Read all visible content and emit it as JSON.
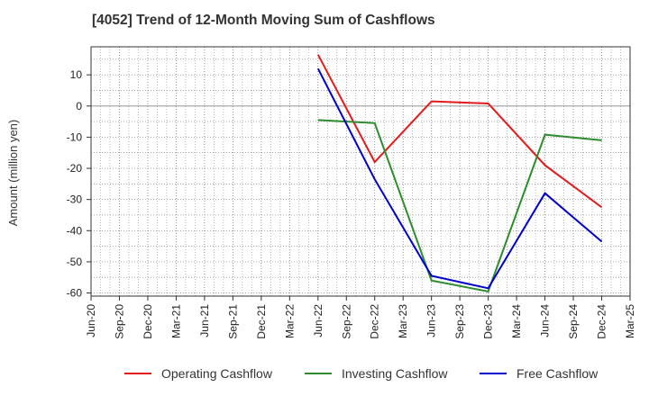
{
  "chart_data": {
    "type": "line",
    "title": "[4052]  Trend of 12-Month Moving Sum of Cashflows",
    "ylabel": "Amount (million yen)",
    "xlabel": "",
    "categories": [
      "Jun-20",
      "Sep-20",
      "Dec-20",
      "Mar-21",
      "Jun-21",
      "Sep-21",
      "Dec-21",
      "Mar-22",
      "Jun-22",
      "Sep-22",
      "Dec-22",
      "Mar-23",
      "Jun-23",
      "Sep-23",
      "Dec-23",
      "Mar-24",
      "Jun-24",
      "Sep-24",
      "Dec-24",
      "Mar-25"
    ],
    "yticks": [
      10,
      0,
      -10,
      -20,
      -30,
      -40,
      -50,
      -60
    ],
    "ylim": [
      -61,
      19
    ],
    "grid": true,
    "legend_position": "bottom",
    "series": [
      {
        "name": "Operating Cashflow",
        "color": "#e31a1c",
        "points": [
          [
            "Jun-22",
            16.5
          ],
          [
            "Dec-22",
            -18
          ],
          [
            "Jun-23",
            1.5
          ],
          [
            "Dec-23",
            0.8
          ],
          [
            "Jun-24",
            -19
          ],
          [
            "Dec-24",
            -32.5
          ]
        ]
      },
      {
        "name": "Investing Cashflow",
        "color": "#2e8b2e",
        "points": [
          [
            "Jun-22",
            -4.5
          ],
          [
            "Dec-22",
            -5.5
          ],
          [
            "Jun-23",
            -56
          ],
          [
            "Dec-23",
            -59.5
          ],
          [
            "Jun-24",
            -9.2
          ],
          [
            "Dec-24",
            -11
          ]
        ]
      },
      {
        "name": "Free Cashflow",
        "color": "#0000cc",
        "points": [
          [
            "Jun-22",
            12
          ],
          [
            "Dec-22",
            -23.5
          ],
          [
            "Jun-23",
            -54.5
          ],
          [
            "Dec-23",
            -58.5
          ],
          [
            "Jun-24",
            -28
          ],
          [
            "Dec-24",
            -43.5
          ]
        ]
      }
    ]
  }
}
